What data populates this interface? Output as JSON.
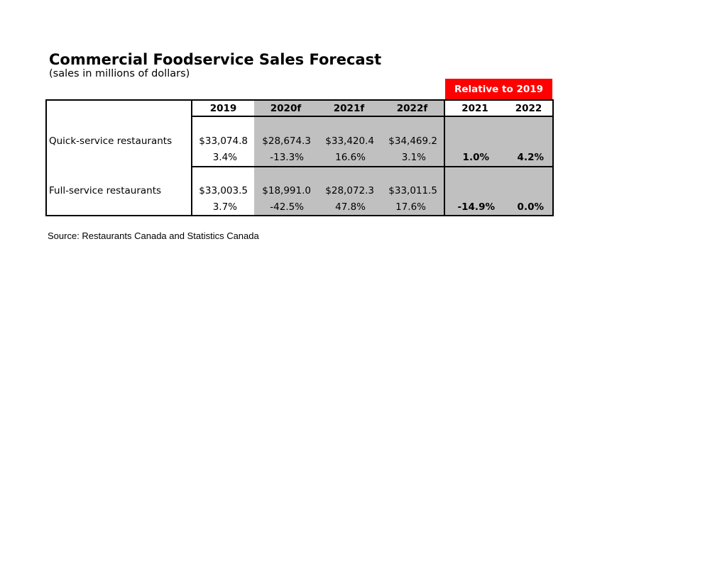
{
  "title": "Commercial Foodservice Sales Forecast",
  "subtitle": "(sales in millions of dollars)",
  "relative_label": "Relative to 2019",
  "headers": {
    "y2019": "2019",
    "y2020f": "2020f",
    "y2021f": "2021f",
    "y2022f": "2022f",
    "rel2021": "2021",
    "rel2022": "2022"
  },
  "rows": [
    {
      "label": "Quick-service restaurants",
      "sales": [
        "$33,074.8",
        "$28,674.3",
        "$33,420.4",
        "$34,469.2"
      ],
      "growth": [
        "3.4%",
        "-13.3%",
        "16.6%",
        "3.1%"
      ],
      "relative": [
        "1.0%",
        "4.2%"
      ]
    },
    {
      "label": "Full-service restaurants",
      "sales": [
        "$33,003.5",
        "$18,991.0",
        "$28,072.3",
        "$33,011.5"
      ],
      "growth": [
        "3.7%",
        "-42.5%",
        "47.8%",
        "17.6%"
      ],
      "relative": [
        "-14.9%",
        "0.0%"
      ]
    }
  ],
  "source": "Source: Restaurants Canada and Statistics Canada",
  "colors": {
    "accent": "#ff0000",
    "shade": "#c0c0c0"
  }
}
